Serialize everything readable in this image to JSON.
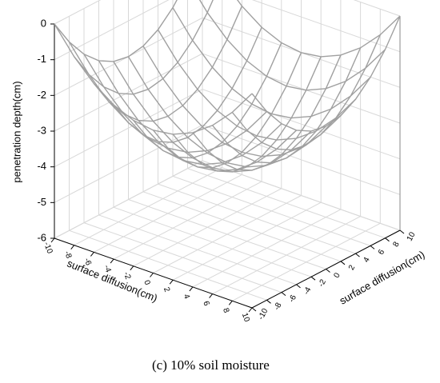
{
  "chart_data": {
    "type": "surface",
    "x_label": "surface diffusion(cm)",
    "y_label": "surface diffusion(cm)",
    "z_label": "penetration depth(cm)",
    "x": [
      -10,
      -8,
      -6,
      -4,
      -2,
      0,
      2,
      4,
      6,
      8,
      10
    ],
    "y": [
      -10,
      -8,
      -6,
      -4,
      -2,
      0,
      2,
      4,
      6,
      8,
      10
    ],
    "z": [
      [
        0,
        -0.72,
        -1.28,
        -1.68,
        -1.92,
        -2,
        -1.92,
        -1.68,
        -1.28,
        -0.72,
        0
      ],
      [
        -0.72,
        -1.44,
        -2,
        -2.4,
        -2.64,
        -2.72,
        -2.64,
        -2.4,
        -2,
        -1.44,
        -0.72
      ],
      [
        -1.28,
        -2,
        -2.56,
        -2.96,
        -3.2,
        -3.28,
        -3.2,
        -2.96,
        -2.56,
        -2,
        -1.28
      ],
      [
        -1.68,
        -2.4,
        -2.96,
        -3.36,
        -3.6,
        -3.68,
        -3.6,
        -3.36,
        -2.96,
        -2.4,
        -1.68
      ],
      [
        -1.92,
        -2.64,
        -3.2,
        -3.6,
        -3.84,
        -3.92,
        -3.84,
        -3.6,
        -3.2,
        -2.64,
        -1.92
      ],
      [
        -2,
        -2.72,
        -3.28,
        -3.68,
        -3.92,
        -4,
        -3.92,
        -3.68,
        -3.28,
        -2.72,
        -2
      ],
      [
        -1.92,
        -2.64,
        -3.2,
        -3.6,
        -3.84,
        -3.92,
        -3.84,
        -3.6,
        -3.2,
        -2.64,
        -1.92
      ],
      [
        -1.68,
        -2.4,
        -2.96,
        -3.36,
        -3.6,
        -3.68,
        -3.6,
        -3.36,
        -2.96,
        -2.4,
        -1.68
      ],
      [
        -1.28,
        -2,
        -2.56,
        -2.96,
        -3.2,
        -3.28,
        -3.2,
        -2.96,
        -2.56,
        -2,
        -1.28
      ],
      [
        -0.72,
        -1.44,
        -2,
        -2.4,
        -2.64,
        -2.72,
        -2.64,
        -2.4,
        -2,
        -1.44,
        -0.72
      ],
      [
        0,
        -0.72,
        -1.28,
        -1.68,
        -1.92,
        -2,
        -1.92,
        -1.68,
        -1.28,
        -0.72,
        0
      ]
    ],
    "color": "#a0a0a0",
    "xlim": [
      -10,
      10
    ],
    "ylim": [
      -10,
      10
    ],
    "zlim": [
      -6,
      0
    ],
    "xticks": [
      -10,
      -8,
      -6,
      -4,
      -2,
      0,
      2,
      4,
      6,
      8,
      10
    ],
    "yticks": [
      -10,
      -8,
      -6,
      -4,
      -2,
      0,
      2,
      4,
      6,
      8,
      10
    ],
    "zticks": [
      -6,
      -5,
      -4,
      -3,
      -2,
      -1,
      0
    ],
    "grid": true
  },
  "caption": "(c)   10% soil moisture"
}
